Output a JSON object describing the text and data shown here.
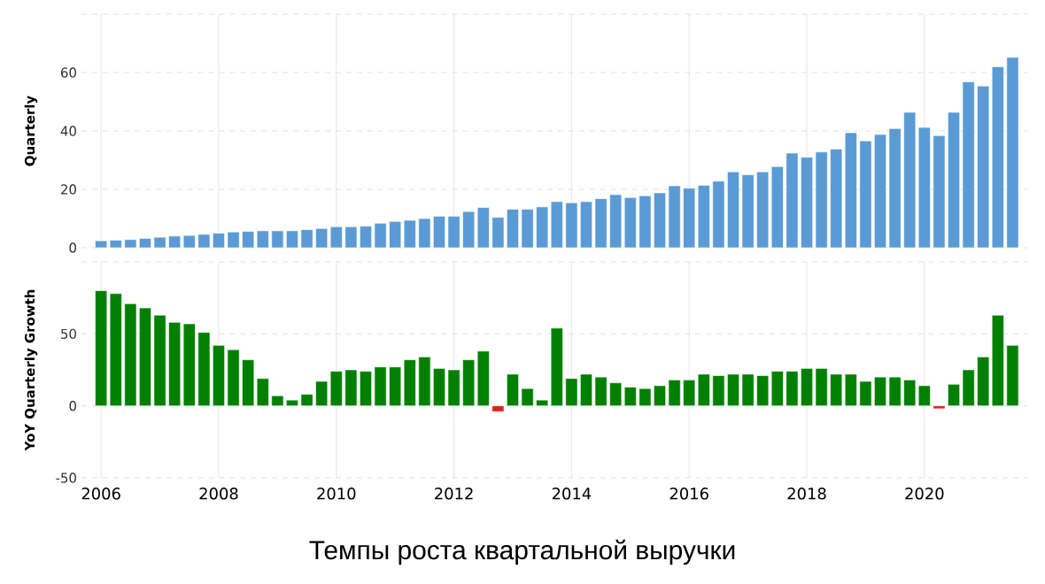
{
  "chart_data": [
    {
      "type": "bar",
      "ylabel": "Quarterly",
      "x": [
        "2006-01",
        "2006-04",
        "2006-07",
        "2006-10",
        "2007-01",
        "2007-04",
        "2007-07",
        "2007-10",
        "2008-01",
        "2008-04",
        "2008-07",
        "2008-10",
        "2009-01",
        "2009-04",
        "2009-07",
        "2009-10",
        "2010-01",
        "2010-04",
        "2010-07",
        "2010-10",
        "2011-01",
        "2011-04",
        "2011-07",
        "2011-10",
        "2012-01",
        "2012-04",
        "2012-07",
        "2012-10",
        "2013-01",
        "2013-04",
        "2013-07",
        "2013-10",
        "2014-01",
        "2014-04",
        "2014-07",
        "2014-10",
        "2015-01",
        "2015-04",
        "2015-07",
        "2015-10",
        "2016-01",
        "2016-04",
        "2016-07",
        "2016-10",
        "2017-01",
        "2017-04",
        "2017-07",
        "2017-10",
        "2018-01",
        "2018-04",
        "2018-07",
        "2018-10",
        "2019-01",
        "2019-04",
        "2019-07",
        "2019-10",
        "2020-01",
        "2020-04",
        "2020-07",
        "2020-10",
        "2021-01",
        "2021-04",
        "2021-07"
      ],
      "values": [
        2.4,
        2.6,
        2.8,
        3.2,
        3.6,
        4.0,
        4.2,
        4.6,
        5.0,
        5.4,
        5.6,
        5.8,
        5.8,
        5.8,
        6.2,
        6.6,
        7.2,
        7.2,
        7.4,
        8.4,
        9.0,
        9.4,
        10.0,
        10.8,
        10.8,
        12.4,
        13.8,
        10.4,
        13.2,
        13.2,
        14.0,
        15.8,
        15.4,
        15.8,
        16.8,
        18.2,
        17.2,
        17.8,
        18.8,
        21.2,
        20.4,
        21.4,
        22.8,
        26.0,
        25.0,
        26.0,
        27.8,
        32.4,
        31.0,
        32.8,
        33.8,
        39.4,
        36.6,
        38.8,
        40.8,
        46.4,
        41.2,
        38.4,
        46.4,
        56.8,
        55.4,
        62.0,
        65.2
      ],
      "color": "#5b9bd5",
      "xlim": [
        "2005-09",
        "2021-10"
      ],
      "xticks": [
        "2006",
        "2008",
        "2010",
        "2012",
        "2014",
        "2016",
        "2018",
        "2020"
      ],
      "ylim": [
        0,
        80
      ],
      "yticks": [
        0,
        20,
        40,
        60,
        {
          "value": 80,
          "label": null
        }
      ],
      "grid": true,
      "tick_labels": "y"
    },
    {
      "type": "bar",
      "ylabel": "YoY Quarterly Growth",
      "x": [
        "2006-01",
        "2006-04",
        "2006-07",
        "2006-10",
        "2007-01",
        "2007-04",
        "2007-07",
        "2007-10",
        "2008-01",
        "2008-04",
        "2008-07",
        "2008-10",
        "2009-01",
        "2009-04",
        "2009-07",
        "2009-10",
        "2010-01",
        "2010-04",
        "2010-07",
        "2010-10",
        "2011-01",
        "2011-04",
        "2011-07",
        "2011-10",
        "2012-01",
        "2012-04",
        "2012-07",
        "2012-10",
        "2013-01",
        "2013-04",
        "2013-07",
        "2013-10",
        "2014-01",
        "2014-04",
        "2014-07",
        "2014-10",
        "2015-01",
        "2015-04",
        "2015-07",
        "2015-10",
        "2016-01",
        "2016-04",
        "2016-07",
        "2016-10",
        "2017-01",
        "2017-04",
        "2017-07",
        "2017-10",
        "2018-01",
        "2018-04",
        "2018-07",
        "2018-10",
        "2019-01",
        "2019-04",
        "2019-07",
        "2019-10",
        "2020-01",
        "2020-04",
        "2020-07",
        "2020-10",
        "2021-01",
        "2021-04",
        "2021-07"
      ],
      "values": [
        80,
        78,
        71,
        68,
        63,
        58,
        57,
        51,
        42,
        39,
        32,
        19,
        7,
        4,
        8,
        17,
        24,
        25,
        24,
        27,
        27,
        32,
        34,
        26,
        25,
        32,
        38,
        -4,
        22,
        12,
        4,
        54,
        19,
        22,
        20,
        16,
        13,
        12,
        14,
        18,
        18,
        22,
        21,
        22,
        22,
        21,
        24,
        24,
        26,
        26,
        22,
        22,
        17,
        20,
        20,
        18,
        14,
        -2,
        15,
        25,
        34,
        63,
        42
      ],
      "colors": [
        "#008000",
        "#008000",
        "#008000",
        "#008000",
        "#008000",
        "#008000",
        "#008000",
        "#008000",
        "#008000",
        "#008000",
        "#008000",
        "#008000",
        "#008000",
        "#008000",
        "#008000",
        "#008000",
        "#008000",
        "#008000",
        "#008000",
        "#008000",
        "#008000",
        "#008000",
        "#008000",
        "#008000",
        "#008000",
        "#008000",
        "#008000",
        "#e0201b",
        "#008000",
        "#008000",
        "#008000",
        "#008000",
        "#008000",
        "#008000",
        "#008000",
        "#008000",
        "#008000",
        "#008000",
        "#008000",
        "#008000",
        "#008000",
        "#008000",
        "#008000",
        "#008000",
        "#008000",
        "#008000",
        "#008000",
        "#008000",
        "#008000",
        "#008000",
        "#008000",
        "#008000",
        "#008000",
        "#008000",
        "#008000",
        "#008000",
        "#008000",
        "#e0201b",
        "#008000",
        "#008000",
        "#008000",
        "#008000",
        "#008000"
      ],
      "xlim": [
        "2005-09",
        "2021-10"
      ],
      "xticks": [
        "2006",
        "2008",
        "2010",
        "2012",
        "2014",
        "2016",
        "2018",
        "2020"
      ],
      "ylim": [
        -50,
        100
      ],
      "yticks": [
        -50,
        0,
        50,
        {
          "value": 100,
          "label": null
        }
      ],
      "grid": true,
      "annotations": [
        "Темпы роста квартальной выручки"
      ]
    }
  ]
}
